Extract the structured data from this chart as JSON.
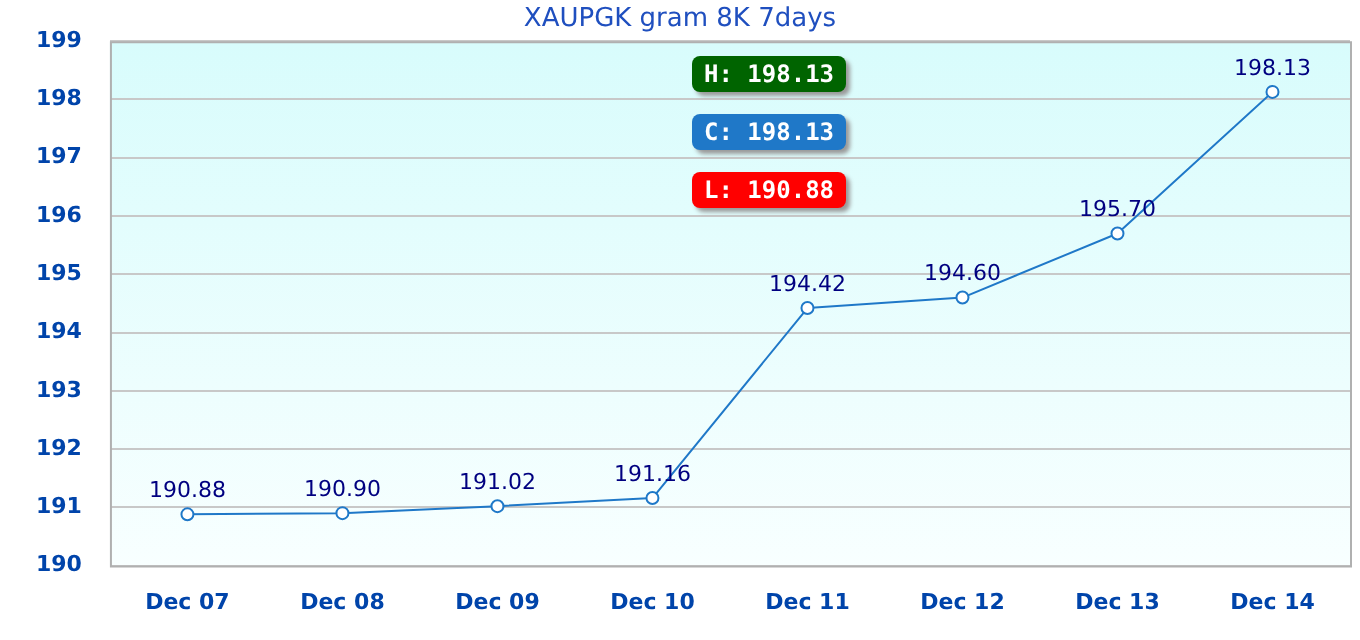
{
  "chart_data": {
    "type": "line",
    "title": "XAUPGK gram 8K 7days",
    "categories": [
      "Dec 07",
      "Dec 08",
      "Dec 09",
      "Dec 10",
      "Dec 11",
      "Dec 12",
      "Dec 13",
      "Dec 14"
    ],
    "values": [
      190.88,
      190.9,
      191.02,
      191.16,
      194.42,
      194.6,
      195.7,
      198.13
    ],
    "color": "#1f78c8",
    "ylim": [
      190,
      199
    ],
    "yticks": [
      190,
      191,
      192,
      193,
      194,
      195,
      196,
      197,
      198,
      199
    ],
    "value_labels": [
      "190.88",
      "190.90",
      "191.02",
      "191.16",
      "194.42",
      "194.60",
      "195.70",
      "198.13"
    ],
    "grid": "y",
    "marker": "circle",
    "legend": false,
    "annotations": [
      "H: 198.13",
      "C: 198.13",
      "L: 190.88"
    ]
  }
}
